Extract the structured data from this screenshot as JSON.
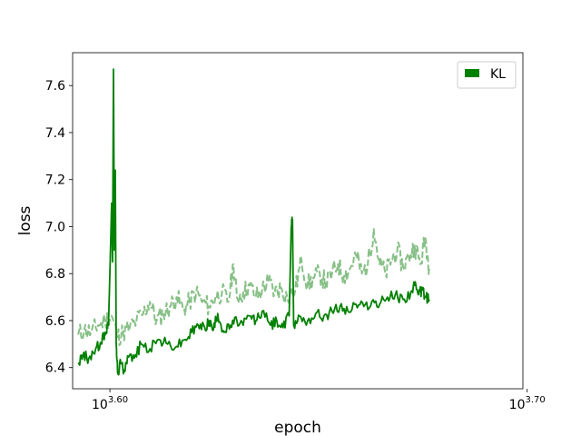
{
  "chart_data": {
    "type": "line",
    "xscale": "log",
    "xlabel": "epoch",
    "ylabel": "loss",
    "xlim": [
      3900,
      5000
    ],
    "ylim": [
      6.31,
      7.74
    ],
    "x_ticks": [
      {
        "value": 3981.07,
        "base": "10",
        "exp": "3.60"
      },
      {
        "value": 5011.87,
        "base": "10",
        "exp": "3.70"
      }
    ],
    "y_ticks": [
      "6.4",
      "6.6",
      "6.8",
      "7.0",
      "7.2",
      "7.4",
      "7.6"
    ],
    "legend": {
      "location": "top-right",
      "entries": [
        {
          "label": "KL",
          "color": "#008000"
        }
      ]
    },
    "series": [
      {
        "name": "KL",
        "color": "#008000",
        "style": "solid",
        "points": [
          [
            3912,
            6.42
          ],
          [
            3922,
            6.45
          ],
          [
            3935,
            6.44
          ],
          [
            3950,
            6.48
          ],
          [
            3962,
            6.5
          ],
          [
            3970,
            6.55
          ],
          [
            3978,
            6.58
          ],
          [
            3985,
            7.1
          ],
          [
            3987,
            6.85
          ],
          [
            3989,
            7.67
          ],
          [
            3991,
            6.9
          ],
          [
            3993,
            7.24
          ],
          [
            3995,
            6.5
          ],
          [
            3998,
            6.38
          ],
          [
            4005,
            6.42
          ],
          [
            4012,
            6.39
          ],
          [
            4020,
            6.45
          ],
          [
            4035,
            6.44
          ],
          [
            4050,
            6.5
          ],
          [
            4070,
            6.48
          ],
          [
            4090,
            6.52
          ],
          [
            4110,
            6.5
          ],
          [
            4130,
            6.49
          ],
          [
            4150,
            6.52
          ],
          [
            4165,
            6.55
          ],
          [
            4180,
            6.58
          ],
          [
            4195,
            6.57
          ],
          [
            4205,
            6.6
          ],
          [
            4215,
            6.56
          ],
          [
            4225,
            6.63
          ],
          [
            4240,
            6.55
          ],
          [
            4255,
            6.58
          ],
          [
            4270,
            6.6
          ],
          [
            4285,
            6.58
          ],
          [
            4300,
            6.62
          ],
          [
            4315,
            6.6
          ],
          [
            4330,
            6.64
          ],
          [
            4350,
            6.58
          ],
          [
            4365,
            6.6
          ],
          [
            4380,
            6.57
          ],
          [
            4395,
            6.62
          ],
          [
            4400,
            7.0
          ],
          [
            4403,
            7.03
          ],
          [
            4406,
            6.58
          ],
          [
            4420,
            6.62
          ],
          [
            4440,
            6.6
          ],
          [
            4460,
            6.63
          ],
          [
            4480,
            6.62
          ],
          [
            4500,
            6.64
          ],
          [
            4520,
            6.66
          ],
          [
            4540,
            6.64
          ],
          [
            4560,
            6.67
          ],
          [
            4580,
            6.66
          ],
          [
            4600,
            6.68
          ],
          [
            4620,
            6.67
          ],
          [
            4640,
            6.7
          ],
          [
            4660,
            6.71
          ],
          [
            4680,
            6.69
          ],
          [
            4700,
            6.72
          ],
          [
            4710,
            6.75
          ],
          [
            4720,
            6.71
          ],
          [
            4730,
            6.73
          ],
          [
            4740,
            6.7
          ],
          [
            4748,
            6.69
          ]
        ]
      },
      {
        "name": "",
        "color": "#87c087",
        "style": "dashed",
        "points": [
          [
            3912,
            6.54
          ],
          [
            3925,
            6.56
          ],
          [
            3940,
            6.55
          ],
          [
            3955,
            6.58
          ],
          [
            3970,
            6.6
          ],
          [
            3985,
            6.62
          ],
          [
            3998,
            6.53
          ],
          [
            4010,
            6.55
          ],
          [
            4025,
            6.57
          ],
          [
            4040,
            6.6
          ],
          [
            4055,
            6.63
          ],
          [
            4070,
            6.68
          ],
          [
            4085,
            6.6
          ],
          [
            4100,
            6.63
          ],
          [
            4115,
            6.66
          ],
          [
            4130,
            6.7
          ],
          [
            4145,
            6.65
          ],
          [
            4160,
            6.68
          ],
          [
            4175,
            6.72
          ],
          [
            4190,
            6.68
          ],
          [
            4205,
            6.66
          ],
          [
            4220,
            6.7
          ],
          [
            4235,
            6.72
          ],
          [
            4250,
            6.68
          ],
          [
            4262,
            6.84
          ],
          [
            4270,
            6.7
          ],
          [
            4285,
            6.72
          ],
          [
            4300,
            6.75
          ],
          [
            4315,
            6.7
          ],
          [
            4330,
            6.73
          ],
          [
            4345,
            6.77
          ],
          [
            4360,
            6.72
          ],
          [
            4375,
            6.74
          ],
          [
            4390,
            6.7
          ],
          [
            4410,
            6.73
          ],
          [
            4425,
            6.86
          ],
          [
            4440,
            6.75
          ],
          [
            4455,
            6.78
          ],
          [
            4470,
            6.8
          ],
          [
            4485,
            6.76
          ],
          [
            4500,
            6.8
          ],
          [
            4515,
            6.84
          ],
          [
            4530,
            6.79
          ],
          [
            4545,
            6.82
          ],
          [
            4560,
            6.88
          ],
          [
            4575,
            6.8
          ],
          [
            4590,
            6.84
          ],
          [
            4605,
            6.99
          ],
          [
            4620,
            6.84
          ],
          [
            4635,
            6.8
          ],
          [
            4650,
            6.86
          ],
          [
            4665,
            6.9
          ],
          [
            4680,
            6.83
          ],
          [
            4695,
            6.87
          ],
          [
            4710,
            6.92
          ],
          [
            4725,
            6.84
          ],
          [
            4738,
            6.95
          ],
          [
            4748,
            6.82
          ]
        ]
      }
    ]
  }
}
